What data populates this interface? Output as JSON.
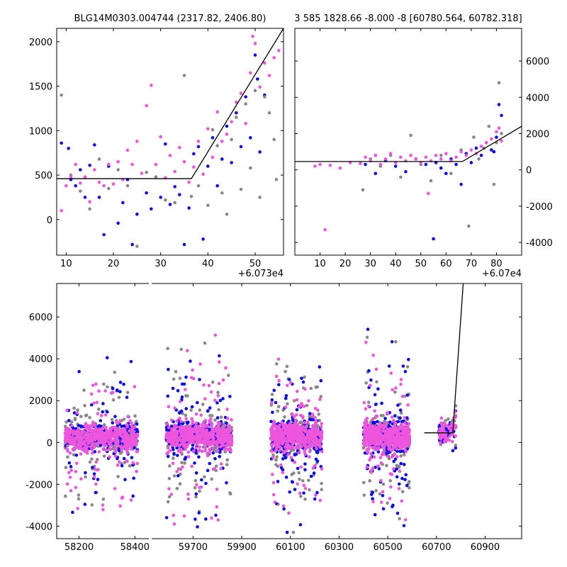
{
  "chart_data": [
    {
      "type": "scatter",
      "title": "BLG14M0303.004744 (2317.82, 2406.80)",
      "xlabel": "",
      "ylabel": "",
      "x_offset_label": "+6.073e4",
      "xlim": [
        8,
        56
      ],
      "ylim": [
        -400,
        2150
      ],
      "xticks": [
        10,
        20,
        30,
        40,
        50
      ],
      "yticks": [
        0,
        500,
        1000,
        1500,
        2000
      ],
      "y_axis_side": "left",
      "model_line": {
        "x": [
          8,
          36.5,
          56
        ],
        "y": [
          460,
          460,
          2150
        ]
      },
      "series": [
        {
          "color": "#0a0af0",
          "points": [
            [
              9,
              860
            ],
            [
              10.5,
              800
            ],
            [
              11,
              450
            ],
            [
              12,
              380
            ],
            [
              13,
              560
            ],
            [
              14,
              250
            ],
            [
              15,
              610
            ],
            [
              16,
              840
            ],
            [
              17,
              250
            ],
            [
              18,
              -170
            ],
            [
              19,
              600
            ],
            [
              21,
              -40
            ],
            [
              22,
              190
            ],
            [
              23,
              450
            ],
            [
              24,
              -280
            ],
            [
              25,
              60
            ],
            [
              27,
              300
            ],
            [
              28,
              120
            ],
            [
              30,
              250
            ],
            [
              31,
              850
            ],
            [
              32,
              170
            ],
            [
              33,
              370
            ],
            [
              34,
              280
            ],
            [
              35,
              -280
            ],
            [
              36,
              130
            ],
            [
              37,
              740
            ],
            [
              38,
              820
            ],
            [
              39,
              -220
            ],
            [
              40,
              600
            ],
            [
              41,
              920
            ],
            [
              42,
              380
            ],
            [
              43,
              680
            ],
            [
              44,
              1050
            ],
            [
              45,
              640
            ],
            [
              46,
              1200
            ],
            [
              47,
              820
            ],
            [
              48,
              1380
            ],
            [
              49,
              920
            ],
            [
              50,
              1850
            ],
            [
              50.5,
              1580
            ],
            [
              51,
              760
            ],
            [
              52,
              1400
            ]
          ]
        },
        {
          "color": "#888888",
          "points": [
            [
              9,
              1400
            ],
            [
              11,
              500
            ],
            [
              13,
              320
            ],
            [
              15,
              120
            ],
            [
              17,
              680
            ],
            [
              19,
              350
            ],
            [
              21,
              560
            ],
            [
              23,
              380
            ],
            [
              25,
              -300
            ],
            [
              27,
              530
            ],
            [
              29,
              480
            ],
            [
              31,
              220
            ],
            [
              33,
              190
            ],
            [
              35,
              1620
            ],
            [
              36.5,
              260
            ],
            [
              38,
              380
            ],
            [
              40,
              160
            ],
            [
              41,
              1010
            ],
            [
              42,
              830
            ],
            [
              43,
              300
            ],
            [
              44,
              60
            ],
            [
              45,
              900
            ],
            [
              46,
              1150
            ],
            [
              47,
              340
            ],
            [
              48,
              1300
            ],
            [
              49,
              580
            ],
            [
              50,
              1450
            ],
            [
              51,
              250
            ],
            [
              52,
              1380
            ],
            [
              53,
              1200
            ],
            [
              54,
              900
            ],
            [
              54.5,
              450
            ]
          ]
        },
        {
          "color": "#ee55dd",
          "points": [
            [
              9,
              100
            ],
            [
              10,
              380
            ],
            [
              11,
              480
            ],
            [
              12,
              620
            ],
            [
              13,
              410
            ],
            [
              14,
              480
            ],
            [
              15,
              200
            ],
            [
              16,
              560
            ],
            [
              17,
              420
            ],
            [
              18,
              380
            ],
            [
              19,
              620
            ],
            [
              20,
              400
            ],
            [
              21,
              650
            ],
            [
              22,
              450
            ],
            [
              23,
              780
            ],
            [
              24,
              620
            ],
            [
              25,
              880
            ],
            [
              26,
              520
            ],
            [
              27,
              1280
            ],
            [
              28,
              1510
            ],
            [
              29,
              620
            ],
            [
              30,
              930
            ],
            [
              31,
              470
            ],
            [
              32,
              720
            ],
            [
              33,
              540
            ],
            [
              34,
              810
            ],
            [
              35,
              650
            ],
            [
              36,
              420
            ],
            [
              37,
              590
            ],
            [
              38,
              880
            ],
            [
              39,
              510
            ],
            [
              40,
              1020
            ],
            [
              41,
              700
            ],
            [
              42,
              1210
            ],
            [
              43,
              880
            ],
            [
              44,
              960
            ],
            [
              45,
              1100
            ],
            [
              46,
              1320
            ],
            [
              47,
              1420
            ],
            [
              48,
              1080
            ],
            [
              49,
              1650
            ],
            [
              49.5,
              2060
            ],
            [
              50,
              1980
            ],
            [
              51,
              1490
            ],
            [
              52,
              1760
            ],
            [
              53,
              1620
            ],
            [
              54,
              1820
            ],
            [
              55,
              1900
            ]
          ]
        }
      ]
    },
    {
      "type": "scatter",
      "title": "3 585 1828.66 -8.000 -8 [60780.564, 60782.318]",
      "xlabel": "",
      "ylabel": "",
      "x_offset_label": "+6.07e4",
      "xlim": [
        0,
        90
      ],
      "ylim": [
        -4700,
        7800
      ],
      "xticks": [
        10,
        20,
        30,
        40,
        50,
        60,
        70,
        80
      ],
      "yticks": [
        -4000,
        -2000,
        0,
        2000,
        4000,
        6000
      ],
      "y_axis_side": "right",
      "model_line": {
        "x": [
          0,
          66.5,
          90
        ],
        "y": [
          460,
          460,
          2400
        ]
      },
      "series": [
        {
          "color": "#0a0af0",
          "points": [
            [
              28,
              300
            ],
            [
              32,
              -200
            ],
            [
              36,
              500
            ],
            [
              40,
              200
            ],
            [
              44,
              -100
            ],
            [
              48,
              600
            ],
            [
              52,
              300
            ],
            [
              55,
              -3800
            ],
            [
              56,
              400
            ],
            [
              58,
              100
            ],
            [
              60,
              -200
            ],
            [
              62,
              600
            ],
            [
              64,
              300
            ],
            [
              66,
              -800
            ],
            [
              68,
              900
            ],
            [
              70,
              400
            ],
            [
              72,
              1200
            ],
            [
              74,
              800
            ],
            [
              76,
              1500
            ],
            [
              78,
              1100
            ],
            [
              80,
              1800
            ],
            [
              81,
              3600
            ],
            [
              82,
              3000
            ],
            [
              79,
              1000
            ]
          ]
        },
        {
          "color": "#888888",
          "points": [
            [
              27,
              -1100
            ],
            [
              30,
              600
            ],
            [
              34,
              200
            ],
            [
              38,
              800
            ],
            [
              42,
              -400
            ],
            [
              46,
              1900
            ],
            [
              50,
              300
            ],
            [
              54,
              -600
            ],
            [
              58,
              800
            ],
            [
              62,
              -200
            ],
            [
              66,
              1100
            ],
            [
              69,
              -3100
            ],
            [
              71,
              1800
            ],
            [
              73,
              600
            ],
            [
              75,
              1200
            ],
            [
              77,
              2400
            ],
            [
              79,
              -800
            ],
            [
              80,
              1500
            ],
            [
              81,
              4800
            ],
            [
              82,
              2000
            ]
          ]
        },
        {
          "color": "#ee55dd",
          "points": [
            [
              8,
              200
            ],
            [
              10,
              300
            ],
            [
              12,
              -3300
            ],
            [
              14,
              250
            ],
            [
              18,
              100
            ],
            [
              22,
              400
            ],
            [
              26,
              350
            ],
            [
              28,
              700
            ],
            [
              30,
              500
            ],
            [
              32,
              800
            ],
            [
              34,
              300
            ],
            [
              36,
              600
            ],
            [
              38,
              900
            ],
            [
              40,
              400
            ],
            [
              42,
              700
            ],
            [
              44,
              500
            ],
            [
              46,
              800
            ],
            [
              48,
              600
            ],
            [
              50,
              400
            ],
            [
              52,
              700
            ],
            [
              53,
              -1300
            ],
            [
              54,
              500
            ],
            [
              56,
              800
            ],
            [
              58,
              600
            ],
            [
              60,
              900
            ],
            [
              62,
              500
            ],
            [
              64,
              700
            ],
            [
              66,
              1000
            ],
            [
              68,
              800
            ],
            [
              70,
              1100
            ],
            [
              72,
              900
            ],
            [
              74,
              1300
            ],
            [
              76,
              1500
            ],
            [
              78,
              1700
            ],
            [
              80,
              2100
            ],
            [
              81,
              2300
            ],
            [
              82,
              1600
            ]
          ]
        }
      ]
    },
    {
      "type": "scatter",
      "title": "",
      "xlabel": "",
      "ylabel": "",
      "x_offset_label": "",
      "ylim": [
        -4600,
        7600
      ],
      "yticks": [
        -4000,
        -2000,
        0,
        2000,
        4000,
        6000
      ],
      "y_axis_side": "left",
      "broken_x_axis": true,
      "segments": [
        {
          "xlim": [
            58120,
            58450
          ],
          "xticks": [
            58200,
            58400
          ]
        },
        {
          "xlim": [
            59530,
            61050
          ],
          "xticks": [
            59700,
            59900,
            60100,
            60300,
            60500,
            60700,
            60900
          ]
        }
      ],
      "model_line": {
        "x": [
          60650,
          60767,
          60810
        ],
        "y": [
          460,
          460,
          7600
        ]
      },
      "seasons": [
        {
          "x_range": [
            58150,
            58410
          ],
          "center": 250,
          "spread": 500,
          "outlier_spread": 2800,
          "ymax": 6200,
          "ymin": -4400
        },
        {
          "x_range": [
            59590,
            59860
          ],
          "center": 300,
          "spread": 550,
          "outlier_spread": 3200,
          "ymax": 7500,
          "ymin": -4500
        },
        {
          "x_range": [
            60020,
            60230
          ],
          "center": 300,
          "spread": 550,
          "outlier_spread": 3000,
          "ymax": 7500,
          "ymin": -4300
        },
        {
          "x_range": [
            60400,
            60590
          ],
          "center": 300,
          "spread": 550,
          "outlier_spread": 3000,
          "ymax": 7400,
          "ymin": -4200
        },
        {
          "x_range": [
            60710,
            60780
          ],
          "center": 400,
          "spread": 350,
          "outlier_spread": 900,
          "ymax": 2200,
          "ymin": -3200
        }
      ],
      "series": [
        {
          "color": "#888888"
        },
        {
          "color": "#0a0af0"
        },
        {
          "color": "#ee55dd"
        }
      ]
    }
  ]
}
